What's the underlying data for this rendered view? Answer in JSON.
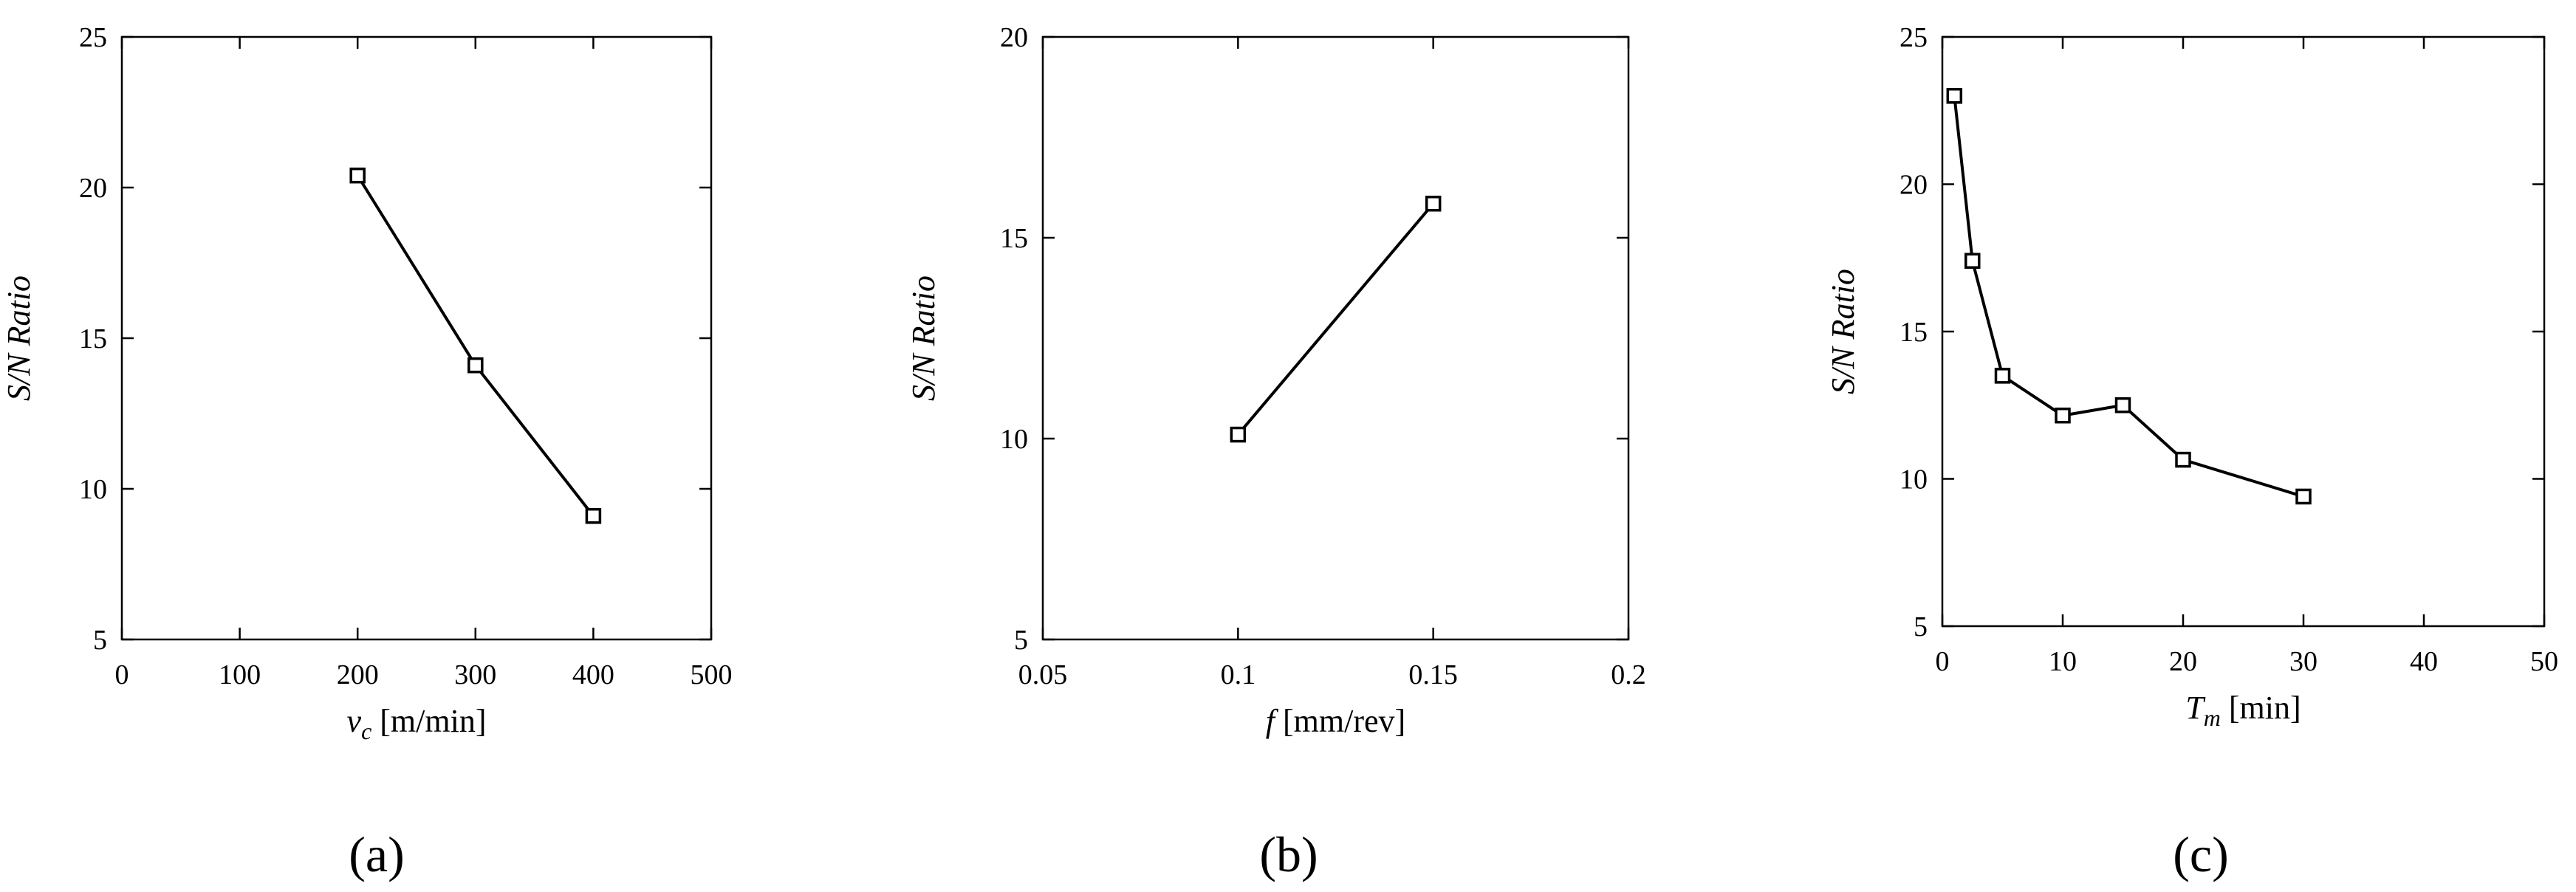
{
  "chart_data": [
    {
      "type": "line",
      "panel_label": "(a)",
      "ylabel": "S/N Ratio",
      "xlabel_var": "v",
      "xlabel_sub": "c",
      "xlabel_unit": " [m/min]",
      "xlim": [
        0,
        500
      ],
      "ylim": [
        5,
        25
      ],
      "xticks": [
        0,
        100,
        200,
        300,
        400,
        500
      ],
      "yticks": [
        5,
        10,
        15,
        20,
        25
      ],
      "xtick_labels": [
        "0",
        "100",
        "200",
        "300",
        "400",
        "500"
      ],
      "ytick_labels": [
        "5",
        "10",
        "15",
        "20",
        "25"
      ],
      "series": [
        {
          "x": [
            200,
            300,
            400
          ],
          "y": [
            20.4,
            14.1,
            9.1
          ],
          "marker": "square",
          "color": "#000000"
        }
      ]
    },
    {
      "type": "line",
      "panel_label": "(b)",
      "ylabel": "S/N Ratio",
      "xlabel_var": "f",
      "xlabel_sub": "",
      "xlabel_unit": " [mm/rev]",
      "xlim": [
        0.05,
        0.2
      ],
      "ylim": [
        5,
        20
      ],
      "xticks": [
        0.05,
        0.1,
        0.15,
        0.2
      ],
      "yticks": [
        5,
        10,
        15,
        20
      ],
      "xtick_labels": [
        "0.05",
        "0.1",
        "0.15",
        "0.2"
      ],
      "ytick_labels": [
        "5",
        "10",
        "15",
        "20"
      ],
      "series": [
        {
          "x": [
            0.1,
            0.15
          ],
          "y": [
            10.1,
            15.85
          ],
          "marker": "square",
          "color": "#000000"
        }
      ]
    },
    {
      "type": "line",
      "panel_label": "(c)",
      "ylabel": "S/N Ratio",
      "xlabel_var": "T",
      "xlabel_sub": "m",
      "xlabel_unit": " [min]",
      "xlim": [
        0,
        50
      ],
      "ylim": [
        5,
        25
      ],
      "xticks": [
        0,
        10,
        20,
        30,
        40,
        50
      ],
      "yticks": [
        5,
        10,
        15,
        20,
        25
      ],
      "xtick_labels": [
        "0",
        "10",
        "20",
        "30",
        "40",
        "50"
      ],
      "ytick_labels": [
        "5",
        "10",
        "15",
        "20",
        "25"
      ],
      "series": [
        {
          "x": [
            1,
            2.5,
            5,
            10,
            15,
            20,
            30
          ],
          "y": [
            23.0,
            17.4,
            13.5,
            12.15,
            12.5,
            10.65,
            9.4
          ],
          "marker": "square",
          "color": "#000000"
        }
      ]
    }
  ]
}
